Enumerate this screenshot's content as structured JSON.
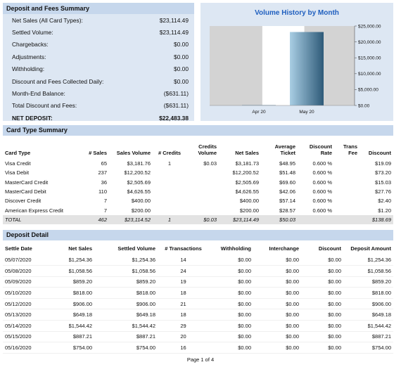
{
  "summary": {
    "title": "Deposit and Fees Summary",
    "rows": [
      {
        "label": "Net Sales (All Card Types):",
        "value": "$23,114.49",
        "bold": false
      },
      {
        "label": "Settled Volume:",
        "value": "$23,114.49",
        "bold": false
      },
      {
        "label": "Chargebacks:",
        "value": "$0.00",
        "bold": false
      },
      {
        "label": "Adjustments:",
        "value": "$0.00",
        "bold": false
      },
      {
        "label": "Withholding:",
        "value": "$0.00",
        "bold": false
      },
      {
        "label": "Discount and Fees Collected Daily:",
        "value": "$0.00",
        "bold": false
      },
      {
        "label": "Month-End Balance:",
        "value": "($631.11)",
        "bold": false
      },
      {
        "label": "Total Discount and Fees:",
        "value": "($631.11)",
        "bold": false
      },
      {
        "label": "NET DEPOSIT:",
        "value": "$22,483.38",
        "bold": true
      }
    ]
  },
  "chart_data": {
    "type": "bar",
    "title": "Volume History by Month",
    "categories": [
      "Apr 20",
      "May 20"
    ],
    "values": [
      0,
      23114.49
    ],
    "ylim": [
      0,
      25000
    ],
    "yticks": [
      0,
      5000,
      10000,
      15000,
      20000,
      25000
    ],
    "ytick_labels": [
      "$0.00",
      "$5,000.00",
      "$10,000.00",
      "$15,000.00",
      "$20,000.00",
      "$25,000.00"
    ],
    "grid": false,
    "colors": {
      "panel_bg": "#dde7f3",
      "plot_bg": "#ffffff",
      "band": "#d3d3d3",
      "bar_light": "#a9cee4",
      "bar_dark": "#2e5a78"
    }
  },
  "card_summary": {
    "title": "Card Type Summary",
    "headers": [
      "Card Type",
      "# Sales",
      "Sales Volume",
      "# Credits",
      "Credits Volume",
      "Net Sales",
      "Average Ticket",
      "Discount Rate",
      "Trans Fee",
      "Discount"
    ],
    "rows": [
      [
        "Visa Credit",
        "65",
        "$3,181.76",
        "1",
        "$0.03",
        "$3,181.73",
        "$48.95",
        "0.600 %",
        "",
        "$19.09"
      ],
      [
        "Visa Debit",
        "237",
        "$12,200.52",
        "",
        "",
        "$12,200.52",
        "$51.48",
        "0.600 %",
        "",
        "$73.20"
      ],
      [
        "MasterCard Credit",
        "36",
        "$2,505.69",
        "",
        "",
        "$2,505.69",
        "$69.60",
        "0.600 %",
        "",
        "$15.03"
      ],
      [
        "MasterCard Debit",
        "110",
        "$4,626.55",
        "",
        "",
        "$4,626.55",
        "$42.06",
        "0.600 %",
        "",
        "$27.76"
      ],
      [
        "Discover Credit",
        "7",
        "$400.00",
        "",
        "",
        "$400.00",
        "$57.14",
        "0.600 %",
        "",
        "$2.40"
      ],
      [
        "American Express Credit",
        "7",
        "$200.00",
        "",
        "",
        "$200.00",
        "$28.57",
        "0.600 %",
        "",
        "$1.20"
      ]
    ],
    "total": [
      "TOTAL",
      "462",
      "$23,114.52",
      "1",
      "$0.03",
      "$23,114.49",
      "$50.03",
      "",
      "",
      "$138.69"
    ]
  },
  "deposit_detail": {
    "title": "Deposit Detail",
    "headers": [
      "Settle Date",
      "Net Sales",
      "Settled Volume",
      "# Transactions",
      "Withholding",
      "Interchange",
      "Discount",
      "Deposit Amount"
    ],
    "rows": [
      [
        "05/07/2020",
        "$1,254.36",
        "$1,254.36",
        "14",
        "$0.00",
        "$0.00",
        "$0.00",
        "$1,254.36"
      ],
      [
        "05/08/2020",
        "$1,058.56",
        "$1,058.56",
        "24",
        "$0.00",
        "$0.00",
        "$0.00",
        "$1,058.56"
      ],
      [
        "05/09/2020",
        "$859.20",
        "$859.20",
        "19",
        "$0.00",
        "$0.00",
        "$0.00",
        "$859.20"
      ],
      [
        "05/10/2020",
        "$818.00",
        "$818.00",
        "18",
        "$0.00",
        "$0.00",
        "$0.00",
        "$818.00"
      ],
      [
        "05/12/2020",
        "$906.00",
        "$906.00",
        "21",
        "$0.00",
        "$0.00",
        "$0.00",
        "$906.00"
      ],
      [
        "05/13/2020",
        "$649.18",
        "$649.18",
        "18",
        "$0.00",
        "$0.00",
        "$0.00",
        "$649.18"
      ],
      [
        "05/14/2020",
        "$1,544.42",
        "$1,544.42",
        "29",
        "$0.00",
        "$0.00",
        "$0.00",
        "$1,544.42"
      ],
      [
        "05/15/2020",
        "$887.21",
        "$887.21",
        "20",
        "$0.00",
        "$0.00",
        "$0.00",
        "$887.21"
      ],
      [
        "05/16/2020",
        "$754.00",
        "$754.00",
        "16",
        "$0.00",
        "$0.00",
        "$0.00",
        "$754.00"
      ]
    ]
  },
  "footer": {
    "page": "Page 1 of 4"
  }
}
